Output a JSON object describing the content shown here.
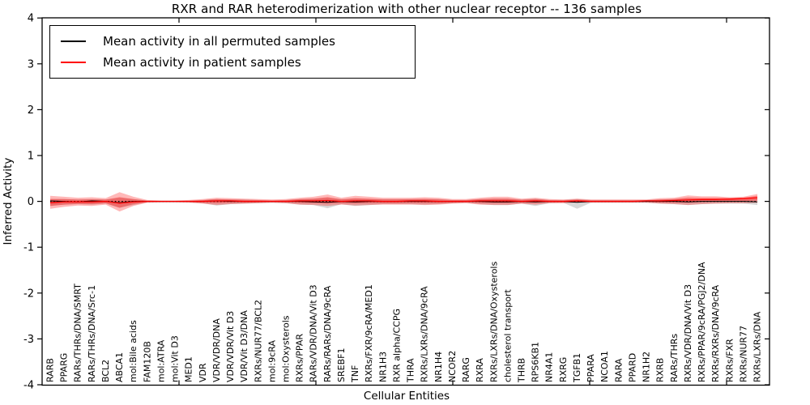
{
  "chart_data": {
    "type": "line",
    "title": "RXR and RAR heterodimerization with other nuclear receptor -- 136 samples",
    "xlabel": "Cellular Entities",
    "ylabel": "Inferred Activity",
    "ylim": [
      -4,
      4
    ],
    "yticks": [
      "4",
      "3",
      "2",
      "1",
      "0",
      "-1",
      "-2",
      "-3",
      "-4"
    ],
    "grid": false,
    "legend_position": "upper left",
    "legend": [
      {
        "label": "Mean activity in all permuted samples",
        "color": "#000000"
      },
      {
        "label": "Mean activity in patient samples",
        "color": "#ff0000"
      }
    ],
    "categories": [
      "RARB",
      "PPARG",
      "RARs/THRs/DNA/SMRT",
      "RARs/THRs/DNA/Src-1",
      "BCL2",
      "ABCA1",
      "mol:Bile acids",
      "FAM120B",
      "mol:ATRA",
      "mol:Vit D3",
      "MED1",
      "VDR",
      "VDR/VDR/DNA",
      "VDR/VDR/Vit D3",
      "VDR/Vit D3/DNA",
      "RXRs/NUR77/BCL2",
      "mol:9cRA",
      "mol:Oxysterols",
      "RXRs/PPAR",
      "RARs/VDR/DNA/Vit D3",
      "RARs/RARs/DNA/9cRA",
      "SREBF1",
      "TNF",
      "RXRs/FXR/9cRA/MED1",
      "NR1H3",
      "RXR alpha/CCPG",
      "THRA",
      "RXRs/LXRs/DNA/9cRA",
      "NR1H4",
      "NCOR2",
      "RARG",
      "RXRA",
      "RXRs/LXRs/DNA/Oxysterols",
      "cholesterol transport",
      "THRB",
      "RPS6KB1",
      "NR4A1",
      "RXRG",
      "TGFB1",
      "PPARA",
      "NCOA1",
      "RARA",
      "PPARD",
      "NR1H2",
      "RXRB",
      "RARs/THRs",
      "RXRs/VDR/DNA/Vit D3",
      "RXRs/PPAR/9cRA/PGJ2/DNA",
      "RXRs/RXRs/DNA/9cRA",
      "RXRs/FXR",
      "RXRs/NUR77",
      "RXRs/LXRs/DNA"
    ],
    "series": [
      {
        "name": "permuted_mean",
        "color": "#000000",
        "values": [
          0.01,
          0.0,
          -0.01,
          0.01,
          0.0,
          -0.03,
          0.0,
          0.0,
          0.0,
          0.0,
          0.0,
          0.0,
          0.01,
          0.0,
          0.0,
          0.0,
          0.0,
          0.0,
          0.0,
          -0.01,
          -0.02,
          0.0,
          -0.01,
          0.0,
          0.0,
          0.0,
          0.0,
          0.0,
          0.0,
          0.0,
          0.0,
          0.0,
          -0.01,
          -0.01,
          0.0,
          -0.01,
          0.0,
          0.0,
          -0.02,
          0.0,
          0.0,
          0.0,
          0.0,
          0.0,
          0.0,
          0.0,
          -0.01,
          0.0,
          0.0,
          0.0,
          0.0,
          -0.01
        ]
      },
      {
        "name": "patient_mean",
        "color": "#ff0000",
        "values": [
          -0.03,
          -0.01,
          -0.01,
          -0.01,
          0.0,
          -0.04,
          -0.01,
          0.0,
          0.0,
          0.0,
          0.0,
          0.0,
          0.01,
          0.01,
          0.0,
          0.0,
          0.0,
          0.0,
          0.01,
          0.01,
          0.02,
          0.0,
          0.01,
          0.01,
          0.0,
          0.0,
          0.01,
          0.01,
          0.0,
          0.0,
          0.0,
          0.01,
          0.01,
          0.01,
          0.0,
          0.01,
          0.0,
          0.0,
          0.01,
          0.0,
          0.0,
          0.0,
          0.0,
          0.01,
          0.01,
          0.02,
          0.03,
          0.04,
          0.04,
          0.05,
          0.06,
          0.08
        ]
      }
    ],
    "bands": [
      {
        "name": "permuted_range",
        "color": "#999999",
        "opacity": 0.38,
        "upper": [
          0.05,
          0.05,
          0.04,
          0.05,
          0.04,
          0.08,
          0.05,
          0.02,
          0.02,
          0.02,
          0.02,
          0.03,
          0.05,
          0.04,
          0.04,
          0.03,
          0.02,
          0.03,
          0.05,
          0.06,
          0.08,
          0.05,
          0.06,
          0.05,
          0.05,
          0.05,
          0.05,
          0.05,
          0.05,
          0.03,
          0.03,
          0.05,
          0.06,
          0.06,
          0.04,
          0.06,
          0.03,
          0.03,
          0.05,
          0.03,
          0.03,
          0.03,
          0.03,
          0.03,
          0.04,
          0.05,
          0.06,
          0.05,
          0.05,
          0.04,
          0.04,
          0.06
        ],
        "lower": [
          -0.1,
          -0.07,
          -0.06,
          -0.07,
          -0.05,
          -0.14,
          -0.08,
          -0.02,
          -0.02,
          -0.02,
          -0.02,
          -0.04,
          -0.09,
          -0.06,
          -0.05,
          -0.04,
          -0.03,
          -0.04,
          -0.07,
          -0.08,
          -0.15,
          -0.06,
          -0.1,
          -0.08,
          -0.06,
          -0.06,
          -0.06,
          -0.07,
          -0.06,
          -0.04,
          -0.03,
          -0.06,
          -0.08,
          -0.08,
          -0.05,
          -0.1,
          -0.04,
          -0.03,
          -0.16,
          -0.03,
          -0.03,
          -0.03,
          -0.03,
          -0.03,
          -0.05,
          -0.06,
          -0.08,
          -0.06,
          -0.05,
          -0.05,
          -0.05,
          -0.08
        ]
      },
      {
        "name": "patient_range_outer",
        "color": "#ff0000",
        "opacity": 0.28,
        "upper": [
          0.12,
          0.1,
          0.08,
          0.09,
          0.07,
          0.2,
          0.1,
          0.03,
          0.02,
          0.02,
          0.03,
          0.05,
          0.08,
          0.07,
          0.06,
          0.05,
          0.04,
          0.05,
          0.08,
          0.1,
          0.15,
          0.08,
          0.12,
          0.1,
          0.08,
          0.08,
          0.08,
          0.09,
          0.08,
          0.05,
          0.05,
          0.08,
          0.1,
          0.1,
          0.06,
          0.08,
          0.05,
          0.04,
          0.06,
          0.04,
          0.04,
          0.04,
          0.04,
          0.04,
          0.07,
          0.08,
          0.13,
          0.11,
          0.11,
          0.09,
          0.1,
          0.16
        ],
        "lower": [
          -0.16,
          -0.12,
          -0.09,
          -0.1,
          -0.07,
          -0.22,
          -0.1,
          -0.03,
          -0.02,
          -0.02,
          -0.03,
          -0.05,
          -0.08,
          -0.06,
          -0.05,
          -0.04,
          -0.03,
          -0.04,
          -0.07,
          -0.08,
          -0.1,
          -0.07,
          -0.09,
          -0.08,
          -0.07,
          -0.07,
          -0.07,
          -0.08,
          -0.07,
          -0.05,
          -0.04,
          -0.07,
          -0.08,
          -0.08,
          -0.05,
          -0.07,
          -0.04,
          -0.04,
          -0.03,
          -0.03,
          -0.03,
          -0.03,
          -0.03,
          -0.03,
          -0.05,
          -0.06,
          -0.08,
          -0.06,
          -0.05,
          -0.04,
          -0.04,
          -0.03
        ]
      },
      {
        "name": "patient_range_inner",
        "color": "#ff0000",
        "opacity": 0.32,
        "scale_of_outer": 0.55
      }
    ],
    "zero_line": {
      "y": 0,
      "style": "dotted",
      "color": "#000000"
    }
  }
}
